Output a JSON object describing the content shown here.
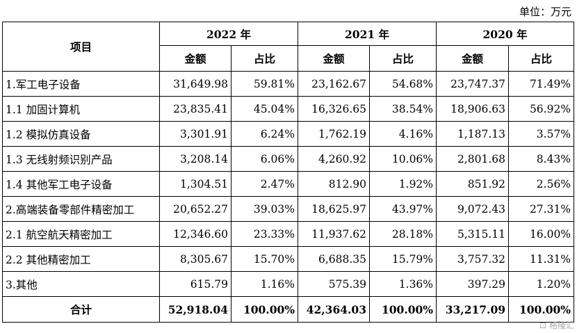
{
  "unit_label": "单位：万元",
  "header": {
    "item": "项目",
    "years": [
      "2022 年",
      "2021 年",
      "2020 年"
    ],
    "amount": "金额",
    "ratio": "占比"
  },
  "rows": [
    {
      "label": "1.军工电子设备",
      "v": [
        "31,649.98",
        "59.81%",
        "23,162.67",
        "54.68%",
        "23,747.37",
        "71.49%"
      ]
    },
    {
      "label": "1.1 加固计算机",
      "v": [
        "23,835.41",
        "45.04%",
        "16,326.65",
        "38.54%",
        "18,906.63",
        "56.92%"
      ]
    },
    {
      "label": "1.2 模拟仿真设备",
      "v": [
        "3,301.91",
        "6.24%",
        "1,762.19",
        "4.16%",
        "1,187.13",
        "3.57%"
      ]
    },
    {
      "label": "1.3 无线射频识别产品",
      "v": [
        "3,208.14",
        "6.06%",
        "4,260.92",
        "10.06%",
        "2,801.68",
        "8.43%"
      ]
    },
    {
      "label": "1.4 其他军工电子设备",
      "v": [
        "1,304.51",
        "2.47%",
        "812.90",
        "1.92%",
        "851.92",
        "2.56%"
      ]
    },
    {
      "label": "2.高端装备零部件精密加工",
      "v": [
        "20,652.27",
        "39.03%",
        "18,625.97",
        "43.97%",
        "9,072.43",
        "27.31%"
      ]
    },
    {
      "label": "2.1 航空航天精密加工",
      "v": [
        "12,346.60",
        "23.33%",
        "11,937.62",
        "28.18%",
        "5,315.11",
        "16.00%"
      ]
    },
    {
      "label": "2.2 其他精密加工",
      "v": [
        "8,305.67",
        "15.70%",
        "6,688.35",
        "15.79%",
        "3,757.32",
        "11.31%"
      ]
    },
    {
      "label": "3.其他",
      "v": [
        "615.79",
        "1.16%",
        "575.39",
        "1.36%",
        "397.29",
        "1.20%"
      ]
    }
  ],
  "total": {
    "label": "合计",
    "v": [
      "52,918.04",
      "100.00%",
      "42,364.03",
      "100.00%",
      "33,217.09",
      "100.00%"
    ]
  },
  "watermark": "格隆汇"
}
